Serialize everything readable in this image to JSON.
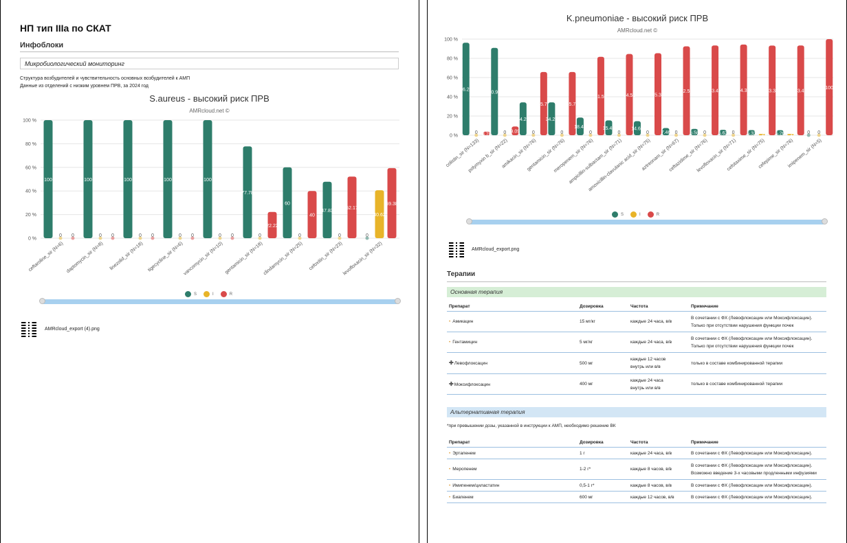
{
  "left": {
    "doc_title": "НП тип IIIa по СКАТ",
    "section": "Инфоблоки",
    "subsection": "Микробиологический мониторинг",
    "note1": "Структура возбудителей и чувствительность основных возбудителей к АМП",
    "note2": "Данные из отделений с низким уровнем ПРВ, за 2024 год",
    "export_file": "AMRcloud_export (4).png"
  },
  "right": {
    "export_file": "AMRcloud_export.png",
    "therapy_title": "Терапии",
    "main_band": "Основная терапия",
    "alt_band": "Альтернативная терапия",
    "alt_note": "*при превышении дозы, указанной в инструкции к АМП, необходимо решение ВК",
    "headers": [
      "Препарат",
      "Дозировка",
      "Частота",
      "Примечание"
    ],
    "main_rows": [
      {
        "mark": "•",
        "drug": "Амикацин",
        "dose": "15 мг/кг",
        "freq": [
          "каждые 24 часа, в/в"
        ],
        "note": [
          "В сочетании с ФХ (Левофлоксацин или Моксифлоксацин).",
          "Только при отсутствии нарушения функции почек"
        ]
      },
      {
        "mark": "•",
        "drug": "Гентамицин",
        "dose": "5 мг/кг",
        "freq": [
          "каждые 24 часа, в/в"
        ],
        "note": [
          "В сочетании с ФХ (Левофлоксацин или Моксифлоксацин).",
          "Только при отсутствии нарушения функции почек"
        ]
      },
      {
        "mark": "+",
        "drug": "Левофлоксацин",
        "dose": "500 мг",
        "freq": [
          "каждые 12 часов",
          "внутрь или в/в"
        ],
        "note": [
          "только в составе комбинированной терапии"
        ]
      },
      {
        "mark": "+",
        "drug": "Моксифлоксацин",
        "dose": "400 мг",
        "freq": [
          "каждые 24 часа",
          "внутрь или в/в"
        ],
        "note": [
          "только в составе комбинированной терапии"
        ]
      }
    ],
    "alt_rows": [
      {
        "mark": "•",
        "drug": "Эртапенем",
        "dose": "1 г",
        "freq": [
          "каждые 24 часа, в/в"
        ],
        "note": [
          "В сочетании с ФХ (Левофлоксацин или Моксифлоксацин)."
        ]
      },
      {
        "mark": "•",
        "drug": "Меропенем",
        "dose": "1-2 г*",
        "freq": [
          "каждые 8 часов, в/в"
        ],
        "note": [
          "В сочетании с ФХ (Левофлоксацин или Моксифлоксацин).",
          "Возможно введение 3-х часовыми продленными инфузиями"
        ]
      },
      {
        "mark": "•",
        "drug": "Имипенем/циластатин",
        "dose": "0,5-1 г*",
        "freq": [
          "каждые 8 часов, в/в"
        ],
        "note": [
          "В сочетании с ФХ (Левофлоксацин или Моксифлоксацин)."
        ]
      },
      {
        "mark": "•",
        "drug": "Биапенем",
        "dose": "600 мг",
        "freq": [
          "каждые 12 часов, в/в"
        ],
        "note": [
          "В сочетании с ФХ (Левофлоксацин или Моксифлоксацин)."
        ]
      }
    ]
  },
  "colors": {
    "S": "#2e7d6b",
    "I": "#e8b429",
    "R": "#d94a4a"
  },
  "chart_data": [
    {
      "type": "bar",
      "title": "S.aureus - высокий риск ПРВ",
      "subtitle": "AMRcloud.net ©",
      "categories": [
        "ceftaroline_sir (N=6)",
        "daptomycin_sir (N=8)",
        "linezolid_sir (N=18)",
        "tigecycline_sir (N=6)",
        "vancomycin_sir (N=10)",
        "gentamicin_sir (N=18)",
        "clindamycin_sir (N=25)",
        "cefoxitin_sir (N=23)",
        "levofloxacin_sir (N=32)"
      ],
      "series": [
        {
          "name": "S",
          "values": [
            100,
            100,
            100,
            100,
            100,
            77.78,
            60,
            47.83,
            0
          ]
        },
        {
          "name": "I",
          "values": [
            0,
            0,
            0,
            0,
            0,
            0,
            0,
            0,
            40.62
          ]
        },
        {
          "name": "R",
          "values": [
            0,
            0,
            0,
            0,
            0,
            22.22,
            40,
            52.17,
            59.38
          ]
        }
      ],
      "labels": {
        "S": [
          "100",
          "100",
          "100",
          "100",
          "100",
          "77.78",
          "60",
          "47.83",
          "0"
        ],
        "I": [
          "0",
          "0",
          "0",
          "0",
          "0",
          "0",
          "0",
          "0",
          "40.62"
        ],
        "R": [
          "0",
          "0",
          "0",
          "0",
          "0",
          "22.22",
          "40",
          "52.17",
          "59.38"
        ]
      },
      "yticks": [
        "0 %",
        "20 %",
        "40 %",
        "60 %",
        "80 %",
        "100 %"
      ],
      "ylim": [
        0,
        100
      ],
      "legend": [
        "S",
        "I",
        "R"
      ],
      "legend_position": "bottom"
    },
    {
      "type": "bar",
      "title": "K.pneumoniae - высокий риск ПРВ",
      "subtitle": "AMRcloud.net ©",
      "categories": [
        "colistin_sir (N=133)",
        "polymyxin b_sir (N=22)",
        "amikacin_sir (N=76)",
        "gentamicin_sir (N=76)",
        "meropenem_sir (N=76)",
        "ampicillin-sulbactam_sir (N=71)",
        "amoxicillin-clavulanic acid_sir (N=75)",
        "aztreonam_sir (N=67)",
        "ceftazidime_sir (N=76)",
        "levofloxacin_sir (N=71)",
        "cefotaxime_sir (N=75)",
        "cefepime_sir (N=76)",
        "imipenem_sir (N=5)"
      ],
      "series": [
        {
          "name": "S",
          "values": [
            96.24,
            90.91,
            34.21,
            34.21,
            18.42,
            15.49,
            14.67,
            7.46,
            6.58,
            5.63,
            5.33,
            5.26,
            0
          ]
        },
        {
          "name": "I",
          "values": [
            0,
            0,
            0,
            0,
            0,
            0,
            0,
            0,
            0,
            0,
            1.33,
            1.32,
            0
          ]
        },
        {
          "name": "R",
          "values": [
            3.76,
            9.09,
            65.79,
            65.79,
            81.58,
            84.51,
            85.33,
            92.54,
            93.42,
            94.37,
            93.33,
            93.42,
            100
          ]
        }
      ],
      "labels": {
        "S": [
          "96.24",
          "90.91",
          "34.21",
          "34.21",
          "18.42",
          "15.49",
          "14.67",
          "7.46",
          "6.58",
          "5.63",
          "5.33",
          "5.26",
          "0"
        ],
        "I": [
          "0",
          "0",
          "0",
          "0",
          "0",
          "0",
          "0",
          "0",
          "0",
          "0",
          "1.33",
          "1.32",
          "0"
        ],
        "R": [
          "3.76",
          "9.09",
          "65.79",
          "65.79",
          "81.58",
          "84.51",
          "85.33",
          "92.54",
          "93.42",
          "94.37",
          "93.33",
          "93.42",
          "100"
        ]
      },
      "yticks": [
        "0 %",
        "20 %",
        "40 %",
        "60 %",
        "80 %",
        "100 %"
      ],
      "ylim": [
        0,
        100
      ],
      "legend": [
        "S",
        "I",
        "R"
      ],
      "legend_position": "bottom"
    }
  ]
}
